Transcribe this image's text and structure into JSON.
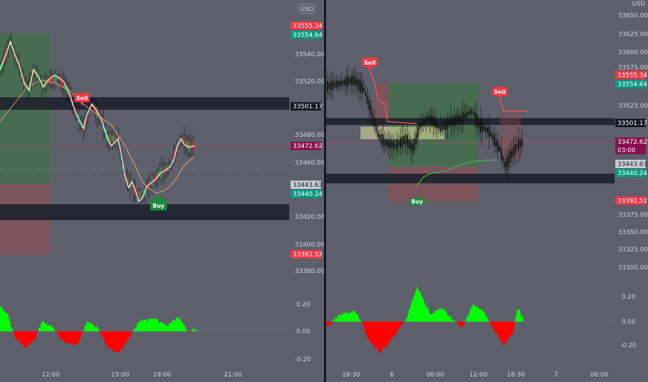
{
  "currency": "USD",
  "left": {
    "y_ticks": [
      "33540.00",
      "33520.00",
      "33480.00",
      "33460.00",
      "33420.00",
      "33400.00",
      "33380.00"
    ],
    "x_ticks": [
      "12:00",
      "15:00",
      "18:00",
      "21:00"
    ],
    "price_tags": [
      {
        "label": "33555.34",
        "color": "#f23645"
      },
      {
        "label": "33554.64",
        "color": "#089981"
      },
      {
        "label": "33501.17",
        "color": "#131722"
      },
      {
        "label": "33472.62",
        "color": "#880e4f"
      },
      {
        "label": "33443.63",
        "color": "#b2b5be"
      },
      {
        "label": "33440.24",
        "color": "#089981"
      },
      {
        "label": "33392.52",
        "color": "#f23645"
      }
    ],
    "signals": [
      {
        "label": "Sell"
      },
      {
        "label": "Buy"
      }
    ],
    "osc_ticks": [
      "0.20",
      "0.00",
      "-0.20"
    ]
  },
  "right": {
    "y_ticks": [
      "33650.00",
      "33625.00",
      "33600.00",
      "33575.00",
      "33525.00",
      "33375.00",
      "33350.00",
      "33325.00",
      "33300.00"
    ],
    "x_ticks": [
      "18:30",
      "6",
      "06:00",
      "12:00",
      "18:30",
      "7",
      "06:00"
    ],
    "price_tags": [
      {
        "label": "33555.34",
        "color": "#f23645"
      },
      {
        "label": "33554.64",
        "color": "#089981"
      },
      {
        "label": "33501.17",
        "color": "#131722"
      },
      {
        "label": "33472.62",
        "color": "#880e4f"
      },
      {
        "label": "03:00",
        "color": "#880e4f"
      },
      {
        "label": "33443.63",
        "color": "#b2b5be"
      },
      {
        "label": "33440.24",
        "color": "#089981"
      },
      {
        "label": "33392.52",
        "color": "#f23645"
      }
    ],
    "signals": [
      {
        "label": "Sell"
      },
      {
        "label": "Sell"
      },
      {
        "label": "Buy"
      }
    ],
    "osc_ticks": [
      "0.20",
      "0.00",
      "-0.20"
    ]
  },
  "colors": {
    "background": "#5d606b",
    "up": "#00ff00",
    "down": "#ff0000",
    "sell": "#f23645",
    "buy": "#089981",
    "zone": "#131722"
  }
}
